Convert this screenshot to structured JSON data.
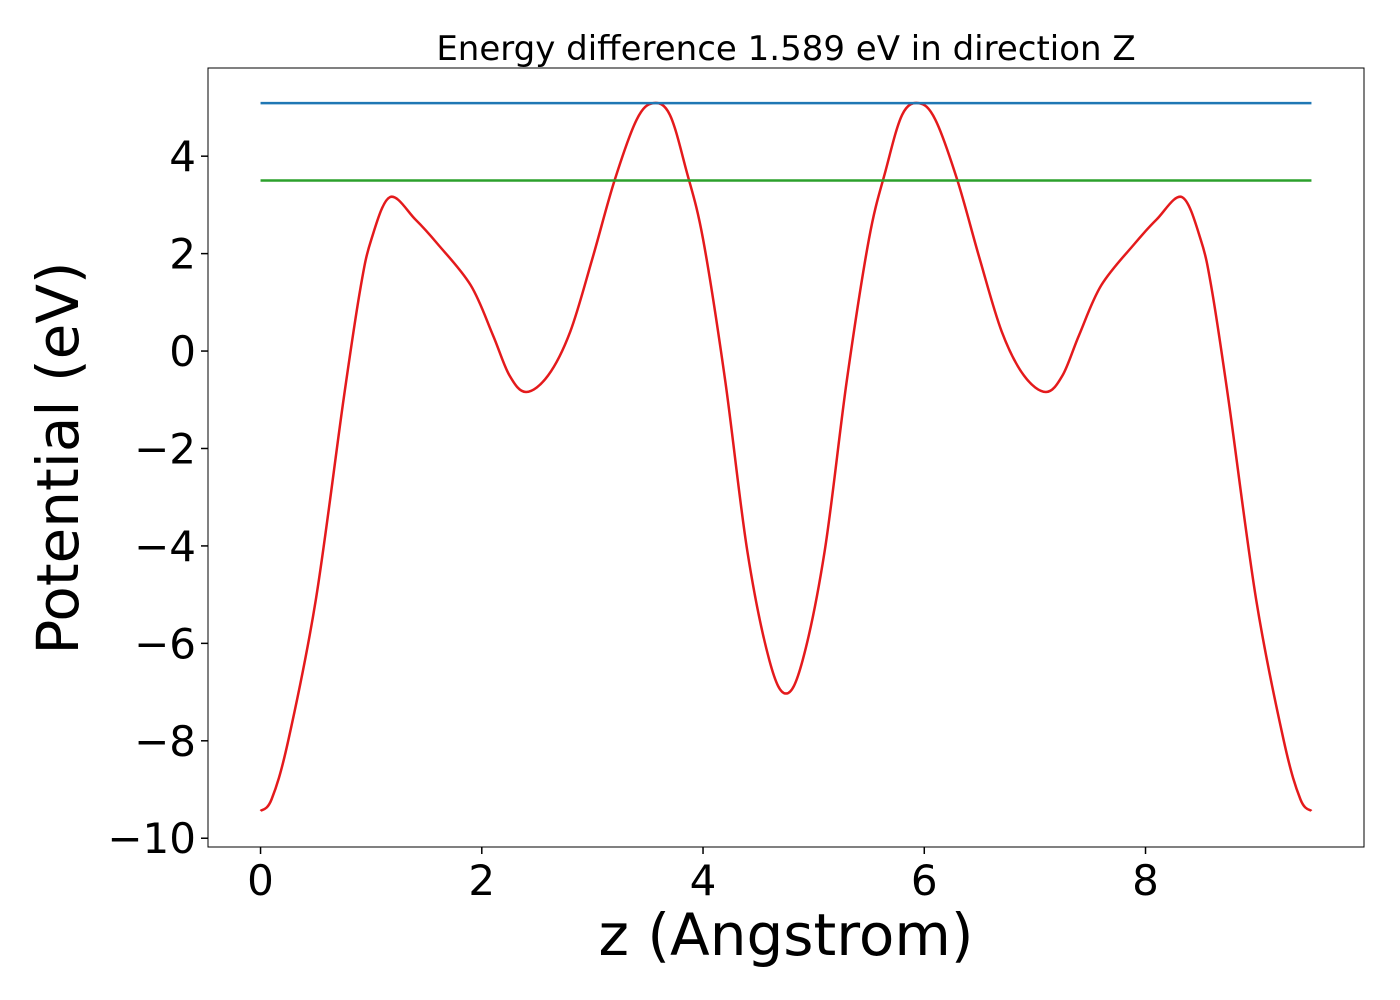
{
  "chart_data": {
    "type": "line",
    "title": "Energy difference 1.589 eV in direction Z",
    "x_label": "z (Angstrom)",
    "y_label": "Potential (eV)",
    "xlim": [
      -0.475,
      9.975
    ],
    "ylim": [
      -10.18,
      5.81
    ],
    "xticks": [
      0,
      2,
      4,
      6,
      8
    ],
    "yticks": [
      {
        "value": -10,
        "label": "−10"
      },
      {
        "value": -8,
        "label": "−8"
      },
      {
        "value": -6,
        "label": "−6"
      },
      {
        "value": -4,
        "label": "−4"
      },
      {
        "value": -2,
        "label": "−2"
      },
      0,
      2,
      4
    ],
    "grid": false,
    "series": [
      {
        "color": "#e41a1c",
        "x": [
          0,
          0.1,
          0.25,
          0.5,
          0.75,
          0.9,
          1.0,
          1.17,
          1.4,
          1.6,
          1.9,
          2.1,
          2.25,
          2.4,
          2.6,
          2.8,
          3.0,
          3.2,
          3.4,
          3.55,
          3.7,
          3.85,
          4.0,
          4.2,
          4.4,
          4.6,
          4.75,
          4.9,
          5.1,
          5.3,
          5.5,
          5.65,
          5.8,
          5.95,
          6.1,
          6.3,
          6.5,
          6.7,
          6.9,
          7.1,
          7.25,
          7.4,
          7.6,
          7.9,
          8.1,
          8.33,
          8.5,
          8.6,
          8.75,
          9.0,
          9.25,
          9.4,
          9.5
        ],
        "values": [
          -9.44,
          -9.2,
          -8.0,
          -5.1,
          -1.0,
          1.25,
          2.28,
          3.16,
          2.7,
          2.2,
          1.35,
          0.33,
          -0.5,
          -0.84,
          -0.5,
          0.4,
          1.9,
          3.5,
          4.75,
          5.09,
          4.85,
          3.7,
          2.3,
          -0.6,
          -4.1,
          -6.35,
          -7.03,
          -6.35,
          -4.1,
          -0.6,
          2.3,
          3.7,
          4.85,
          5.09,
          4.75,
          3.5,
          1.9,
          0.4,
          -0.5,
          -0.84,
          -0.5,
          0.33,
          1.35,
          2.2,
          2.7,
          3.16,
          2.28,
          1.25,
          -1.0,
          -5.1,
          -8.0,
          -9.2,
          -9.44
        ]
      },
      {
        "color": "#1f77b4",
        "x": [
          0,
          9.5
        ],
        "values": [
          5.09,
          5.09
        ]
      },
      {
        "color": "#2ca02c",
        "x": [
          0,
          9.5
        ],
        "values": [
          3.5,
          3.5
        ]
      }
    ]
  }
}
